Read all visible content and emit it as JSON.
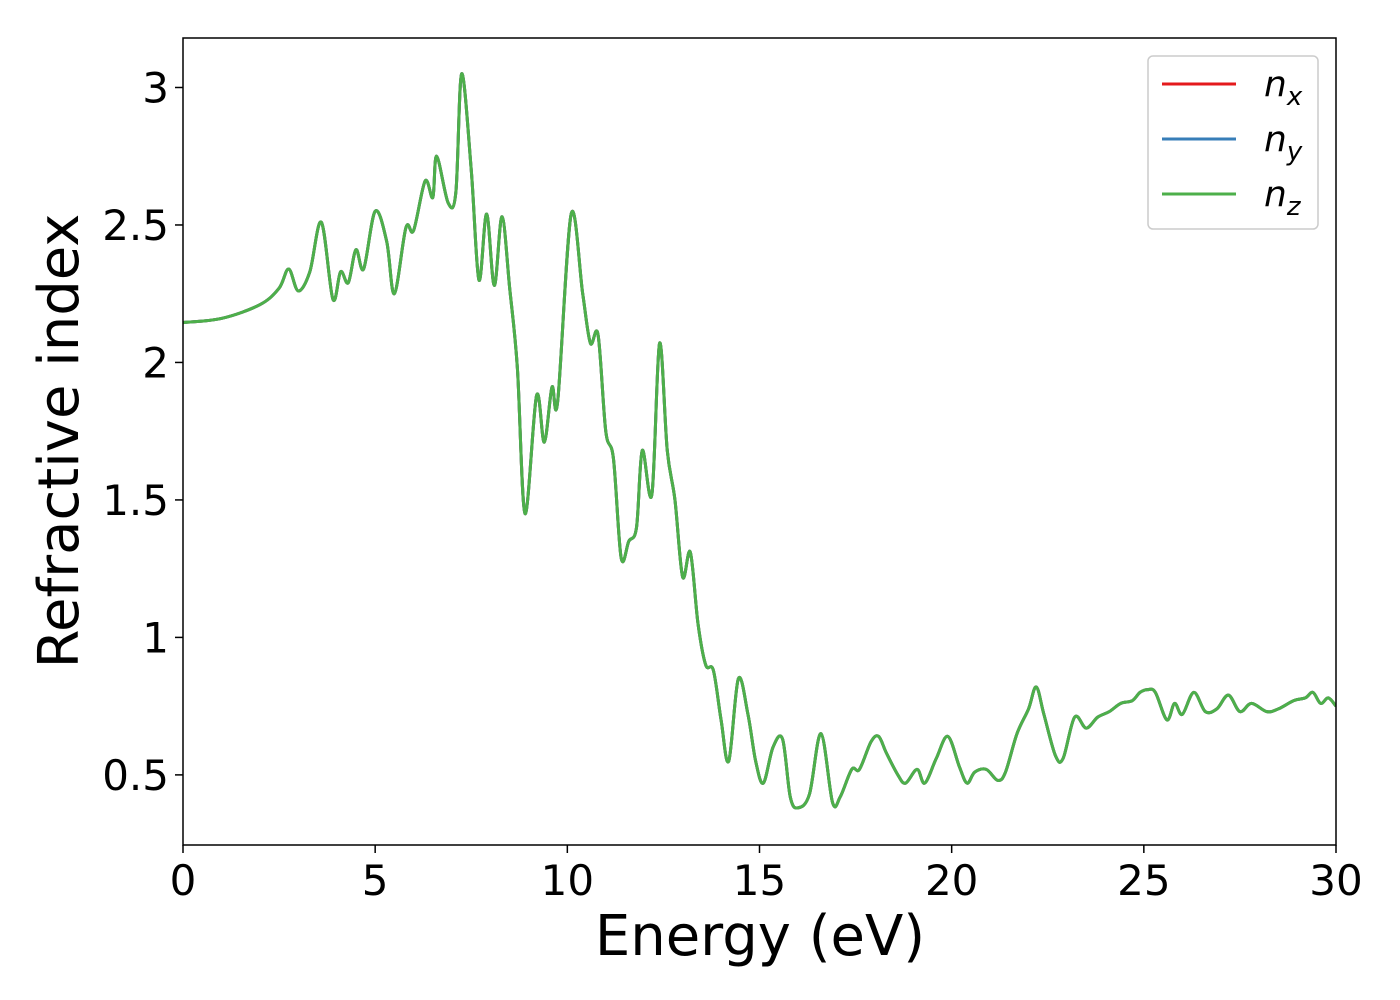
{
  "chart_data": {
    "type": "line",
    "xlabel": "Energy (eV)",
    "ylabel": "Refractive index",
    "xlim": [
      0,
      30
    ],
    "ylim": [
      0.245,
      3.18
    ],
    "xticks": [
      0,
      5,
      10,
      15,
      20,
      25,
      30
    ],
    "yticks": [
      0.5,
      1.0,
      1.5,
      2.0,
      2.5,
      3.0
    ],
    "legend": "upper right",
    "x": [
      0,
      1,
      2,
      2.5,
      2.75,
      3.0,
      3.3,
      3.6,
      3.9,
      4.1,
      4.3,
      4.5,
      4.7,
      5.0,
      5.3,
      5.5,
      5.8,
      6.0,
      6.3,
      6.5,
      6.6,
      6.9,
      7.1,
      7.25,
      7.5,
      7.7,
      7.9,
      8.1,
      8.3,
      8.5,
      8.7,
      8.9,
      9.2,
      9.4,
      9.6,
      9.75,
      10.1,
      10.4,
      10.6,
      10.8,
      11.0,
      11.2,
      11.4,
      11.6,
      11.8,
      11.95,
      12.2,
      12.4,
      12.6,
      12.8,
      13.0,
      13.2,
      13.4,
      13.6,
      13.8,
      14.0,
      14.2,
      14.45,
      14.7,
      14.9,
      15.1,
      15.35,
      15.6,
      15.8,
      16.0,
      16.3,
      16.6,
      16.9,
      17.1,
      17.4,
      17.6,
      17.9,
      18.1,
      18.3,
      18.6,
      18.8,
      19.1,
      19.3,
      19.6,
      19.9,
      20.2,
      20.4,
      20.6,
      20.9,
      21.2,
      21.4,
      21.7,
      22.0,
      22.2,
      22.4,
      22.7,
      22.9,
      23.2,
      23.5,
      23.8,
      24.1,
      24.4,
      24.7,
      24.9,
      25.1,
      25.3,
      25.6,
      25.8,
      26.0,
      26.3,
      26.6,
      26.9,
      27.2,
      27.5,
      27.8,
      28.2,
      28.5,
      28.9,
      29.2,
      29.4,
      29.6,
      29.8,
      30.0
    ],
    "series": [
      {
        "name": "nx",
        "color": "#e41a1c",
        "values": [
          2.145,
          2.16,
          2.21,
          2.27,
          2.34,
          2.26,
          2.33,
          2.51,
          2.23,
          2.33,
          2.29,
          2.41,
          2.34,
          2.55,
          2.44,
          2.25,
          2.49,
          2.48,
          2.66,
          2.6,
          2.75,
          2.58,
          2.62,
          3.05,
          2.7,
          2.3,
          2.54,
          2.28,
          2.53,
          2.27,
          1.98,
          1.45,
          1.88,
          1.71,
          1.91,
          1.86,
          2.54,
          2.25,
          2.07,
          2.1,
          1.75,
          1.65,
          1.29,
          1.35,
          1.4,
          1.68,
          1.52,
          2.07,
          1.68,
          1.5,
          1.22,
          1.31,
          1.05,
          0.9,
          0.88,
          0.7,
          0.55,
          0.85,
          0.72,
          0.55,
          0.47,
          0.6,
          0.63,
          0.42,
          0.38,
          0.43,
          0.65,
          0.4,
          0.42,
          0.52,
          0.52,
          0.62,
          0.64,
          0.58,
          0.5,
          0.47,
          0.52,
          0.47,
          0.56,
          0.64,
          0.53,
          0.47,
          0.51,
          0.52,
          0.48,
          0.51,
          0.65,
          0.74,
          0.82,
          0.72,
          0.57,
          0.56,
          0.71,
          0.67,
          0.71,
          0.73,
          0.76,
          0.77,
          0.8,
          0.81,
          0.8,
          0.7,
          0.76,
          0.72,
          0.8,
          0.73,
          0.74,
          0.79,
          0.73,
          0.76,
          0.73,
          0.74,
          0.77,
          0.78,
          0.8,
          0.76,
          0.78,
          0.75
        ]
      },
      {
        "name": "ny",
        "color": "#377eb8",
        "values": [
          2.145,
          2.16,
          2.21,
          2.27,
          2.34,
          2.26,
          2.33,
          2.51,
          2.23,
          2.33,
          2.29,
          2.41,
          2.34,
          2.55,
          2.44,
          2.25,
          2.49,
          2.48,
          2.66,
          2.6,
          2.75,
          2.58,
          2.62,
          3.05,
          2.7,
          2.3,
          2.54,
          2.28,
          2.53,
          2.27,
          1.98,
          1.45,
          1.88,
          1.71,
          1.91,
          1.86,
          2.54,
          2.25,
          2.07,
          2.1,
          1.75,
          1.65,
          1.29,
          1.35,
          1.4,
          1.68,
          1.52,
          2.07,
          1.68,
          1.5,
          1.22,
          1.31,
          1.05,
          0.9,
          0.88,
          0.7,
          0.55,
          0.85,
          0.72,
          0.55,
          0.47,
          0.6,
          0.63,
          0.42,
          0.38,
          0.43,
          0.65,
          0.4,
          0.42,
          0.52,
          0.52,
          0.62,
          0.64,
          0.58,
          0.5,
          0.47,
          0.52,
          0.47,
          0.56,
          0.64,
          0.53,
          0.47,
          0.51,
          0.52,
          0.48,
          0.51,
          0.65,
          0.74,
          0.82,
          0.72,
          0.57,
          0.56,
          0.71,
          0.67,
          0.71,
          0.73,
          0.76,
          0.77,
          0.8,
          0.81,
          0.8,
          0.7,
          0.76,
          0.72,
          0.8,
          0.73,
          0.74,
          0.79,
          0.73,
          0.76,
          0.73,
          0.74,
          0.77,
          0.78,
          0.8,
          0.76,
          0.78,
          0.75
        ]
      },
      {
        "name": "nz",
        "color": "#4daf4a",
        "values": [
          2.145,
          2.16,
          2.21,
          2.27,
          2.34,
          2.26,
          2.33,
          2.51,
          2.23,
          2.33,
          2.29,
          2.41,
          2.34,
          2.55,
          2.44,
          2.25,
          2.49,
          2.48,
          2.66,
          2.6,
          2.75,
          2.58,
          2.62,
          3.05,
          2.7,
          2.3,
          2.54,
          2.28,
          2.53,
          2.27,
          1.98,
          1.45,
          1.88,
          1.71,
          1.91,
          1.86,
          2.54,
          2.25,
          2.07,
          2.1,
          1.75,
          1.65,
          1.29,
          1.35,
          1.4,
          1.68,
          1.52,
          2.07,
          1.68,
          1.5,
          1.22,
          1.31,
          1.05,
          0.9,
          0.88,
          0.7,
          0.55,
          0.85,
          0.72,
          0.55,
          0.47,
          0.6,
          0.63,
          0.42,
          0.38,
          0.43,
          0.65,
          0.4,
          0.42,
          0.52,
          0.52,
          0.62,
          0.64,
          0.58,
          0.5,
          0.47,
          0.52,
          0.47,
          0.56,
          0.64,
          0.53,
          0.47,
          0.51,
          0.52,
          0.48,
          0.51,
          0.65,
          0.74,
          0.82,
          0.72,
          0.57,
          0.56,
          0.71,
          0.67,
          0.71,
          0.73,
          0.76,
          0.77,
          0.8,
          0.81,
          0.8,
          0.7,
          0.76,
          0.72,
          0.8,
          0.73,
          0.74,
          0.79,
          0.73,
          0.76,
          0.73,
          0.74,
          0.77,
          0.78,
          0.8,
          0.76,
          0.78,
          0.75
        ]
      }
    ]
  }
}
